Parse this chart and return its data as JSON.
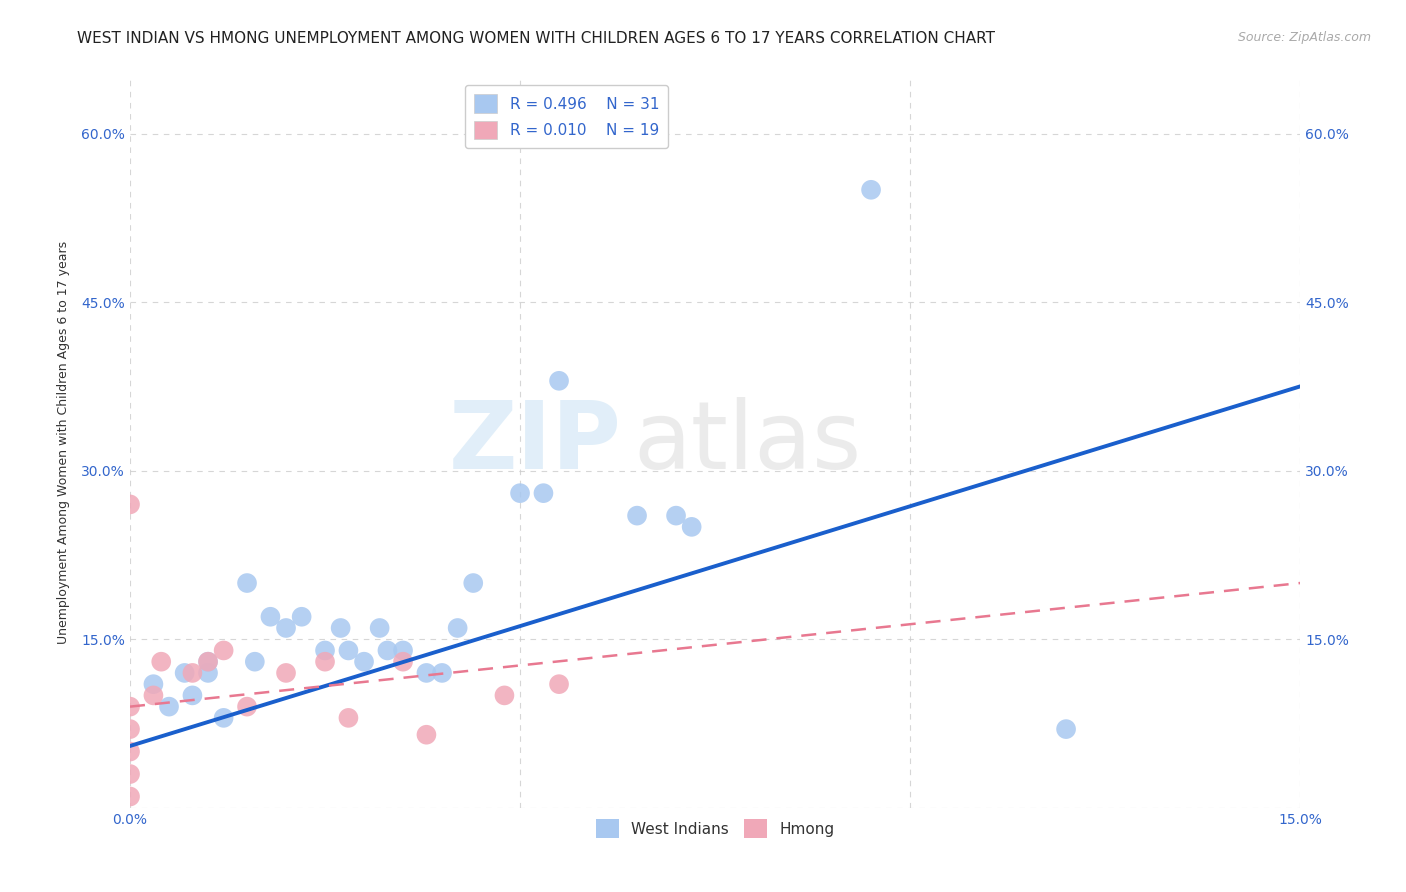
{
  "title": "WEST INDIAN VS HMONG UNEMPLOYMENT AMONG WOMEN WITH CHILDREN AGES 6 TO 17 YEARS CORRELATION CHART",
  "source": "Source: ZipAtlas.com",
  "ylabel": "Unemployment Among Women with Children Ages 6 to 17 years",
  "xlim": [
    0.0,
    0.15
  ],
  "ylim": [
    0.0,
    0.65
  ],
  "x_ticks": [
    0.0,
    0.05,
    0.1,
    0.15
  ],
  "x_tick_labels": [
    "0.0%",
    "",
    "",
    "15.0%"
  ],
  "y_ticks": [
    0.0,
    0.15,
    0.3,
    0.45,
    0.6
  ],
  "y_tick_labels": [
    "",
    "15.0%",
    "30.0%",
    "45.0%",
    "60.0%"
  ],
  "right_y_tick_labels": [
    "",
    "15.0%",
    "30.0%",
    "45.0%",
    "60.0%"
  ],
  "west_indian_color": "#a8c8f0",
  "hmong_color": "#f0a8b8",
  "trend_blue": "#1a5fcc",
  "trend_pink": "#e87890",
  "watermark_zip": "ZIP",
  "watermark_atlas": "atlas",
  "west_indian_x": [
    0.003,
    0.005,
    0.007,
    0.008,
    0.01,
    0.01,
    0.012,
    0.015,
    0.016,
    0.018,
    0.02,
    0.022,
    0.025,
    0.027,
    0.028,
    0.03,
    0.032,
    0.033,
    0.035,
    0.038,
    0.04,
    0.042,
    0.044,
    0.05,
    0.053,
    0.055,
    0.065,
    0.07,
    0.072,
    0.095,
    0.12
  ],
  "west_indian_y": [
    0.11,
    0.09,
    0.12,
    0.1,
    0.12,
    0.13,
    0.08,
    0.2,
    0.13,
    0.17,
    0.16,
    0.17,
    0.14,
    0.16,
    0.14,
    0.13,
    0.16,
    0.14,
    0.14,
    0.12,
    0.12,
    0.16,
    0.2,
    0.28,
    0.28,
    0.38,
    0.26,
    0.26,
    0.25,
    0.55,
    0.07
  ],
  "hmong_x": [
    0.0,
    0.0,
    0.0,
    0.0,
    0.0,
    0.0,
    0.003,
    0.004,
    0.008,
    0.01,
    0.012,
    0.015,
    0.02,
    0.025,
    0.028,
    0.035,
    0.038,
    0.048,
    0.055
  ],
  "hmong_y": [
    0.01,
    0.03,
    0.05,
    0.07,
    0.09,
    0.27,
    0.1,
    0.13,
    0.12,
    0.13,
    0.14,
    0.09,
    0.12,
    0.13,
    0.08,
    0.13,
    0.065,
    0.1,
    0.11
  ],
  "trend_wi_x0": 0.0,
  "trend_wi_y0": 0.055,
  "trend_wi_x1": 0.15,
  "trend_wi_y1": 0.375,
  "trend_h_x0": 0.0,
  "trend_h_y0": 0.09,
  "trend_h_x1": 0.15,
  "trend_h_y1": 0.2,
  "title_fontsize": 11,
  "axis_label_fontsize": 9,
  "tick_fontsize": 10,
  "legend_fontsize": 11,
  "source_fontsize": 9
}
